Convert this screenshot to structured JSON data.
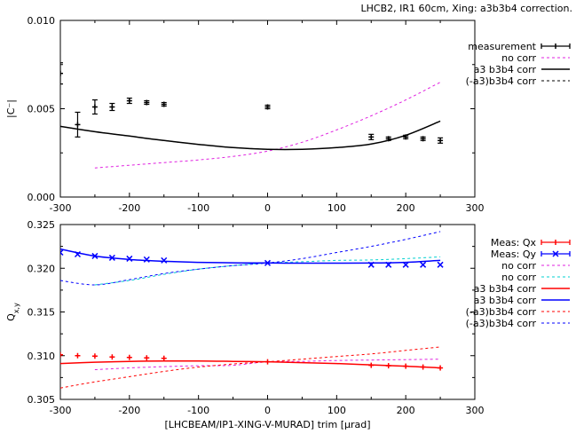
{
  "title": "LHCB2, IR1 60cm, Xing: a3b3b4 correction.",
  "chart_data": [
    {
      "type": "scatter",
      "panel": "top",
      "xlim": [
        -300,
        300
      ],
      "ylim": [
        0,
        0.01
      ],
      "xticks": [
        -300,
        -200,
        -100,
        0,
        100,
        200,
        300
      ],
      "yticks": [
        0,
        0.005,
        0.01
      ],
      "ytick_labels": [
        "0.000",
        "0.005",
        "0.010"
      ],
      "xlabel": "",
      "ylabel": "|C⁻|",
      "legend_position": "right",
      "series": [
        {
          "name": "measurement",
          "style": "points-errorbars",
          "color": "#000000",
          "points": [
            {
              "x": -300,
              "y": 0.007,
              "err": 0.0006
            },
            {
              "x": -275,
              "y": 0.0041,
              "err": 0.0007
            },
            {
              "x": -250,
              "y": 0.0051,
              "err": 0.0004
            },
            {
              "x": -225,
              "y": 0.0051,
              "err": 0.0002
            },
            {
              "x": -200,
              "y": 0.00545,
              "err": 0.00015
            },
            {
              "x": -175,
              "y": 0.00535,
              "err": 0.0001
            },
            {
              "x": -150,
              "y": 0.00525,
              "err": 0.0001
            },
            {
              "x": 0,
              "y": 0.0051,
              "err": 0.0001
            },
            {
              "x": 150,
              "y": 0.0034,
              "err": 0.00015
            },
            {
              "x": 175,
              "y": 0.0033,
              "err": 0.0001
            },
            {
              "x": 200,
              "y": 0.0034,
              "err": 0.0001
            },
            {
              "x": 225,
              "y": 0.0033,
              "err": 0.0001
            },
            {
              "x": 250,
              "y": 0.0032,
              "err": 0.00015
            }
          ]
        },
        {
          "name": "no corr",
          "style": "dashed",
          "color": "#e020e0",
          "points": [
            {
              "x": -250,
              "y": 0.00165
            },
            {
              "x": -200,
              "y": 0.0018
            },
            {
              "x": -150,
              "y": 0.00195
            },
            {
              "x": -100,
              "y": 0.0021
            },
            {
              "x": -50,
              "y": 0.0023
            },
            {
              "x": 0,
              "y": 0.0026
            },
            {
              "x": 50,
              "y": 0.0031
            },
            {
              "x": 100,
              "y": 0.0038
            },
            {
              "x": 150,
              "y": 0.0046
            },
            {
              "x": 200,
              "y": 0.0055
            },
            {
              "x": 250,
              "y": 0.0065
            }
          ]
        },
        {
          "name": "a3 b3b4 corr",
          "style": "solid",
          "color": "#000000",
          "points": [
            {
              "x": -300,
              "y": 0.004
            },
            {
              "x": -250,
              "y": 0.0037
            },
            {
              "x": -200,
              "y": 0.00345
            },
            {
              "x": -150,
              "y": 0.0032
            },
            {
              "x": -100,
              "y": 0.00298
            },
            {
              "x": -50,
              "y": 0.0028
            },
            {
              "x": 0,
              "y": 0.0027
            },
            {
              "x": 50,
              "y": 0.0027
            },
            {
              "x": 100,
              "y": 0.0028
            },
            {
              "x": 150,
              "y": 0.003
            },
            {
              "x": 200,
              "y": 0.0035
            },
            {
              "x": 250,
              "y": 0.0043
            }
          ]
        },
        {
          "name": "(-a3)b3b4 corr",
          "style": "dashed",
          "color": "#000000",
          "points": [
            {
              "x": -300,
              "y": 0.004
            },
            {
              "x": -250,
              "y": 0.0037
            },
            {
              "x": -200,
              "y": 0.00345
            },
            {
              "x": -150,
              "y": 0.0032
            },
            {
              "x": -100,
              "y": 0.00298
            },
            {
              "x": -50,
              "y": 0.0028
            },
            {
              "x": 0,
              "y": 0.0027
            }
          ]
        }
      ]
    },
    {
      "type": "scatter",
      "panel": "bottom",
      "xlim": [
        -300,
        300
      ],
      "ylim": [
        0.305,
        0.325
      ],
      "xticks": [
        -300,
        -200,
        -100,
        0,
        100,
        200,
        300
      ],
      "yticks": [
        0.305,
        0.31,
        0.315,
        0.32,
        0.325
      ],
      "ytick_labels": [
        "0.305",
        "0.310",
        "0.315",
        "0.320",
        "0.325"
      ],
      "xlabel": "[LHCBEAM/IP1-XING-V-MURAD] trim  [µrad]",
      "ylabel": "Q",
      "ylabel_sub": "x,y",
      "legend_position": "right",
      "series": [
        {
          "name": "Meas: Qx",
          "style": "points-errorbars",
          "color": "#ff0000",
          "points": [
            {
              "x": -300,
              "y": 0.3101
            },
            {
              "x": -275,
              "y": 0.31
            },
            {
              "x": -250,
              "y": 0.30995
            },
            {
              "x": -225,
              "y": 0.30985
            },
            {
              "x": -200,
              "y": 0.3098
            },
            {
              "x": -175,
              "y": 0.30975
            },
            {
              "x": -150,
              "y": 0.3097
            },
            {
              "x": 0,
              "y": 0.3093
            },
            {
              "x": 150,
              "y": 0.3089
            },
            {
              "x": 175,
              "y": 0.30885
            },
            {
              "x": 200,
              "y": 0.3088
            },
            {
              "x": 225,
              "y": 0.3087
            },
            {
              "x": 250,
              "y": 0.3086
            }
          ]
        },
        {
          "name": "Meas: Qy",
          "style": "points-errorbars",
          "color": "#0000ff",
          "points": [
            {
              "x": -300,
              "y": 0.3218
            },
            {
              "x": -275,
              "y": 0.3216
            },
            {
              "x": -250,
              "y": 0.3214
            },
            {
              "x": -225,
              "y": 0.3212
            },
            {
              "x": -200,
              "y": 0.3211
            },
            {
              "x": -175,
              "y": 0.321
            },
            {
              "x": -150,
              "y": 0.3209
            },
            {
              "x": 0,
              "y": 0.3206
            },
            {
              "x": 150,
              "y": 0.3204
            },
            {
              "x": 175,
              "y": 0.3204
            },
            {
              "x": 200,
              "y": 0.3204
            },
            {
              "x": 225,
              "y": 0.3204
            },
            {
              "x": 250,
              "y": 0.3204
            }
          ]
        },
        {
          "name": "no corr",
          "style": "dashed",
          "color": "#e020e0",
          "points": [
            {
              "x": -250,
              "y": 0.3084
            },
            {
              "x": -200,
              "y": 0.3086
            },
            {
              "x": -150,
              "y": 0.30875
            },
            {
              "x": -100,
              "y": 0.30885
            },
            {
              "x": -50,
              "y": 0.3089
            },
            {
              "x": 0,
              "y": 0.3093
            },
            {
              "x": 50,
              "y": 0.30935
            },
            {
              "x": 100,
              "y": 0.30945
            },
            {
              "x": 150,
              "y": 0.3095
            },
            {
              "x": 200,
              "y": 0.30955
            },
            {
              "x": 250,
              "y": 0.3096
            }
          ]
        },
        {
          "name": "no corr",
          "style": "dashed",
          "color": "#00d0d0",
          "points": [
            {
              "x": -250,
              "y": 0.3181
            },
            {
              "x": -200,
              "y": 0.3186
            },
            {
              "x": -150,
              "y": 0.3193
            },
            {
              "x": -100,
              "y": 0.3199
            },
            {
              "x": -50,
              "y": 0.3203
            },
            {
              "x": 0,
              "y": 0.3206
            },
            {
              "x": 50,
              "y": 0.32075
            },
            {
              "x": 100,
              "y": 0.3209
            },
            {
              "x": 150,
              "y": 0.32095
            },
            {
              "x": 200,
              "y": 0.3211
            },
            {
              "x": 250,
              "y": 0.3213
            }
          ]
        },
        {
          "name": "a3 b3b4 corr",
          "style": "solid",
          "color": "#ff0000",
          "points": [
            {
              "x": -300,
              "y": 0.3091
            },
            {
              "x": -250,
              "y": 0.30925
            },
            {
              "x": -200,
              "y": 0.30935
            },
            {
              "x": -150,
              "y": 0.3094
            },
            {
              "x": -100,
              "y": 0.3094
            },
            {
              "x": -50,
              "y": 0.30935
            },
            {
              "x": 0,
              "y": 0.3093
            },
            {
              "x": 50,
              "y": 0.3092
            },
            {
              "x": 100,
              "y": 0.3091
            },
            {
              "x": 150,
              "y": 0.30895
            },
            {
              "x": 200,
              "y": 0.3088
            },
            {
              "x": 250,
              "y": 0.3086
            }
          ]
        },
        {
          "name": "a3 b3b4 corr",
          "style": "solid",
          "color": "#0000ff",
          "points": [
            {
              "x": -300,
              "y": 0.3222
            },
            {
              "x": -250,
              "y": 0.3214
            },
            {
              "x": -200,
              "y": 0.321
            },
            {
              "x": -150,
              "y": 0.3208
            },
            {
              "x": -100,
              "y": 0.32068
            },
            {
              "x": -50,
              "y": 0.32062
            },
            {
              "x": 0,
              "y": 0.3206
            },
            {
              "x": 50,
              "y": 0.32058
            },
            {
              "x": 100,
              "y": 0.32058
            },
            {
              "x": 150,
              "y": 0.3206
            },
            {
              "x": 200,
              "y": 0.32068
            },
            {
              "x": 250,
              "y": 0.3209
            }
          ]
        },
        {
          "name": "(-a3)b3b4 corr",
          "style": "dashed",
          "color": "#ff0000",
          "points": [
            {
              "x": -300,
              "y": 0.3063
            },
            {
              "x": -250,
              "y": 0.307
            },
            {
              "x": -200,
              "y": 0.3076
            },
            {
              "x": -150,
              "y": 0.3082
            },
            {
              "x": -100,
              "y": 0.3087
            },
            {
              "x": -50,
              "y": 0.30905
            },
            {
              "x": 0,
              "y": 0.3093
            },
            {
              "x": 50,
              "y": 0.3096
            },
            {
              "x": 100,
              "y": 0.3099
            },
            {
              "x": 150,
              "y": 0.3102
            },
            {
              "x": 200,
              "y": 0.3106
            },
            {
              "x": 250,
              "y": 0.311
            }
          ]
        },
        {
          "name": "(-a3)b3b4 corr",
          "style": "dashed",
          "color": "#0000ff",
          "points": [
            {
              "x": -300,
              "y": 0.3186
            },
            {
              "x": -250,
              "y": 0.3181
            },
            {
              "x": -200,
              "y": 0.3187
            },
            {
              "x": -150,
              "y": 0.3194
            },
            {
              "x": -100,
              "y": 0.3199
            },
            {
              "x": -50,
              "y": 0.3203
            },
            {
              "x": 0,
              "y": 0.3206
            },
            {
              "x": 50,
              "y": 0.3211
            },
            {
              "x": 100,
              "y": 0.3218
            },
            {
              "x": 150,
              "y": 0.3225
            },
            {
              "x": 200,
              "y": 0.3233
            },
            {
              "x": 250,
              "y": 0.3242
            }
          ]
        }
      ]
    }
  ]
}
